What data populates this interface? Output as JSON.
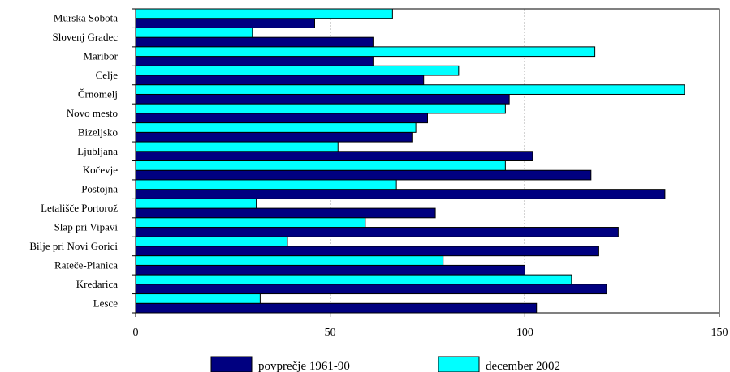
{
  "chart_data": {
    "type": "bar",
    "orientation": "horizontal",
    "categories": [
      "Murska Sobota",
      "Slovenj Gradec",
      "Maribor",
      "Celje",
      "Črnomelj",
      "Novo mesto",
      "Bizeljsko",
      "Ljubljana",
      "Kočevje",
      "Postojna",
      "Letališče Portorož",
      "Slap pri Vipavi",
      "Bilje pri Novi Gorici",
      "Rateče-Planica",
      "Kredarica",
      "Lesce"
    ],
    "series": [
      {
        "name": "povprečje 1961-90",
        "color": "#000080",
        "values": [
          46,
          61,
          61,
          74,
          96,
          75,
          71,
          102,
          117,
          136,
          77,
          124,
          119,
          100,
          121,
          103
        ]
      },
      {
        "name": "december 2002",
        "color": "#00FFFF",
        "values": [
          66,
          30,
          118,
          83,
          141,
          95,
          72,
          52,
          95,
          67,
          31,
          59,
          39,
          79,
          112,
          32
        ]
      }
    ],
    "xlim": [
      0,
      150
    ],
    "xticks": [
      "0",
      "50",
      "100",
      "150"
    ],
    "grid": "vertical at 50 and 100",
    "legend": "bottom"
  }
}
